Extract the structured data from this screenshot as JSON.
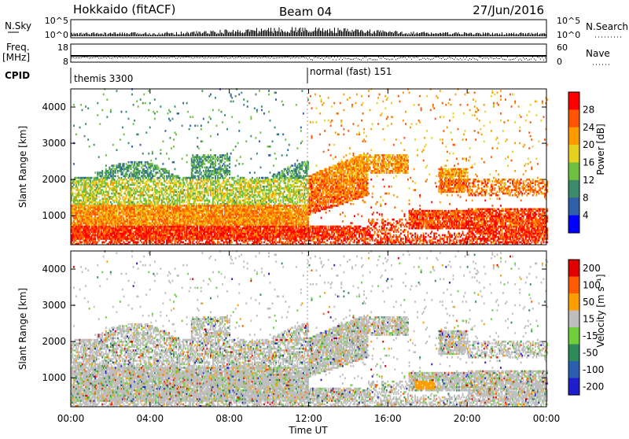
{
  "header": {
    "radar": "Hokkaido (fitACF)",
    "beam": "Beam 04",
    "date": "27/Jun/2016"
  },
  "aux": {
    "nsky_label": "N.Sky",
    "nsky_ticks": [
      "10^5",
      "10^0"
    ],
    "nsearch_label": "N.Search",
    "nsearch_ticks": [
      "10^5",
      "10^0"
    ],
    "freq_label": "Freq.",
    "freq_unit": "[MHz]",
    "freq_ticks": [
      "18",
      "8"
    ],
    "nave_label": "Nave",
    "nave_ticks": [
      "60",
      "0"
    ],
    "cpid_label": "CPID",
    "cpid_segments": [
      "themis 3300",
      "normal (fast) 151"
    ]
  },
  "time_axis": {
    "label": "Time UT",
    "ticks": [
      "00:00",
      "04:00",
      "08:00",
      "12:00",
      "16:00",
      "20:00",
      "00:00"
    ]
  },
  "chart_data": [
    {
      "type": "heatmap",
      "name": "power",
      "ylabel": "Slant Range [km]",
      "yticks": [
        1000,
        2000,
        3000,
        4000
      ],
      "ylim": [
        200,
        4500
      ],
      "xlim": [
        0,
        24
      ],
      "colorbar_label": "Power [dB]",
      "colorbar_ticks": [
        4,
        8,
        12,
        16,
        20,
        24,
        28
      ],
      "colors": [
        "#0000ff",
        "#3060a8",
        "#3b8c6a",
        "#6fbf40",
        "#e6d21e",
        "#ff9900",
        "#ff5500",
        "#ff0000"
      ]
    },
    {
      "type": "heatmap",
      "name": "velocity",
      "ylabel": "Slant Range [km]",
      "yticks": [
        1000,
        2000,
        3000,
        4000
      ],
      "ylim": [
        200,
        4500
      ],
      "xlim": [
        0,
        24
      ],
      "colorbar_label": "Velocity [m s⁻¹]",
      "colorbar_ticks": [
        200,
        100,
        50,
        15,
        -15,
        -50,
        -100,
        -200
      ],
      "colors": [
        "#1e1ecc",
        "#2a5fb0",
        "#2f8a5a",
        "#6fcf3a",
        "#bebebe",
        "#ff9e00",
        "#ff5a00",
        "#e00000"
      ]
    }
  ]
}
